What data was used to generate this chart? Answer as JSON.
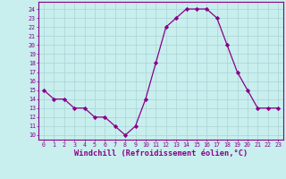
{
  "x": [
    0,
    1,
    2,
    3,
    4,
    5,
    6,
    7,
    8,
    9,
    10,
    11,
    12,
    13,
    14,
    15,
    16,
    17,
    18,
    19,
    20,
    21,
    22,
    23
  ],
  "y": [
    15,
    14,
    14,
    13,
    13,
    12,
    12,
    11,
    10,
    11,
    14,
    18,
    22,
    23,
    24,
    24,
    24,
    23,
    20,
    17,
    15,
    13,
    13,
    13
  ],
  "line_color": "#880088",
  "marker_color": "#880088",
  "bg_color": "#c8eeee",
  "grid_color": "#aad4d4",
  "xlabel": "Windchill (Refroidissement éolien,°C)",
  "xlim": [
    -0.5,
    23.5
  ],
  "ylim": [
    9.5,
    24.8
  ],
  "yticks": [
    10,
    11,
    12,
    13,
    14,
    15,
    16,
    17,
    18,
    19,
    20,
    21,
    22,
    23,
    24
  ],
  "xticks": [
    0,
    1,
    2,
    3,
    4,
    5,
    6,
    7,
    8,
    9,
    10,
    11,
    12,
    13,
    14,
    15,
    16,
    17,
    18,
    19,
    20,
    21,
    22,
    23
  ],
  "tick_color": "#880088",
  "tick_fontsize": 4.8,
  "xlabel_fontsize": 6.2,
  "spine_color": "#880088",
  "linewidth": 0.9,
  "markersize": 2.2
}
